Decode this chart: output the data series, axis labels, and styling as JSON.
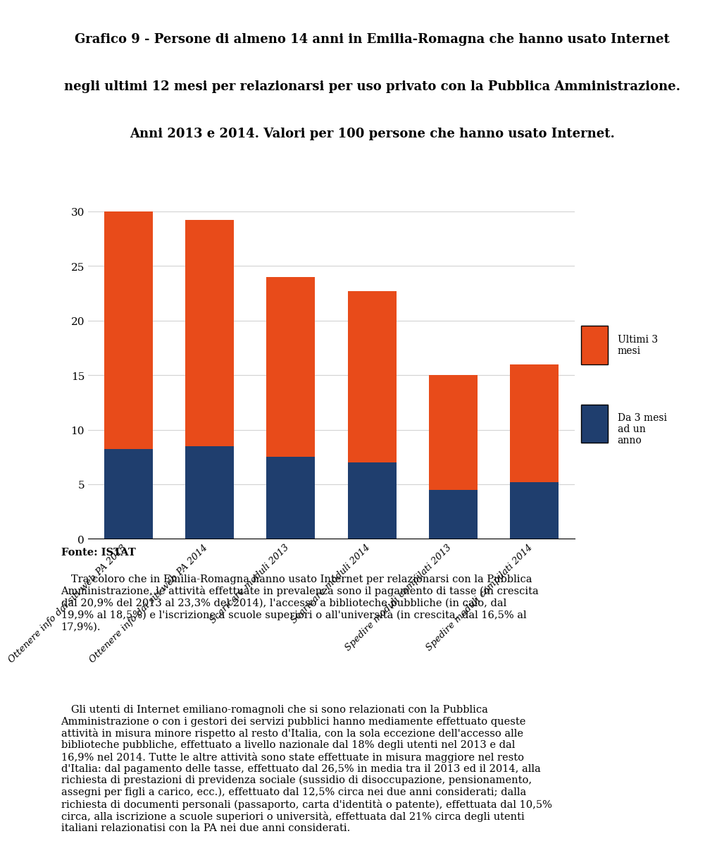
{
  "title_line1": "Grafico 9 - Persone di almeno 14 anni in Emilia-Romagna che hanno usato Internet",
  "title_line2": "negli ultimi 12 mesi per relazionarsi per uso privato con la Pubblica Amministrazione.",
  "title_line3": "Anni 2013 e 2014. Valori per 100 persone che hanno usato Internet.",
  "categories": [
    "Ottenere info dai siti web PA 2013",
    "Ottenere info dai siti web PA 2014",
    "Scaricare moduli 2013",
    "Scaricare moduli 2014",
    "Spedire moduli compilati 2013",
    "Spedire moduli compilati 2014"
  ],
  "blue_values": [
    8.2,
    8.5,
    7.5,
    7.0,
    4.5,
    5.2
  ],
  "orange_values": [
    21.8,
    20.7,
    16.5,
    15.7,
    10.5,
    10.8
  ],
  "blue_color": "#1F3E6E",
  "orange_color": "#E84B1A",
  "legend_label_orange": "Ultimi 3\nmesi",
  "legend_label_blue": "Da 3 mesi\nad un\nanno",
  "fonte_text": "Fonte: ISTAT",
  "ylim": [
    0,
    32
  ],
  "yticks": [
    0,
    5,
    10,
    15,
    20,
    25,
    30
  ],
  "body_text_1": "   Tra coloro che in Emilia-Romagna hanno usato Internet per relazionarsi con la Pubblica\nAmministrazione, le attività effettuate in prevalenza sono il pagamento di tasse (in crescita\ndal 20,9% del 2013 al 23,3% del 2014), l'accesso a biblioteche pubbliche (in calo, dal\n19,9% al 18,5%) e l'iscrizione a scuole superiori o all'università (in crescita, dal 16,5% al\n17,9%).",
  "body_text_2": "   Gli utenti di Internet emiliano-romagnoli che si sono relazionati con la Pubblica\nAmministrazione o con i gestori dei servizi pubblici hanno mediamente effettuato queste\nattività in misura minore rispetto al resto d'Italia, con la sola eccezione dell'accesso alle\nbiblioteche pubbliche, effettuato a livello nazionale dal 18% degli utenti nel 2013 e dal\n16,9% nel 2014. Tutte le altre attività sono state effettuate in misura maggiore nel resto\nd'Italia: dal pagamento delle tasse, effettuato dal 26,5% in media tra il 2013 ed il 2014, alla\nrichiesta di prestazioni di previdenza sociale (sussidio di disoccupazione, pensionamento,\nassegni per figli a carico, ecc.), effettuato dal 12,5% circa nei due anni considerati; dalla\nrichiesta di documenti personali (passaporto, carta d'identità o patente), effettuata dal 10,5%\ncirca, alla iscrizione a scuole superiori o università, effettuata dal 21% circa degli utenti\nitaliani relazionatisi con la PA nei due anni considerati."
}
